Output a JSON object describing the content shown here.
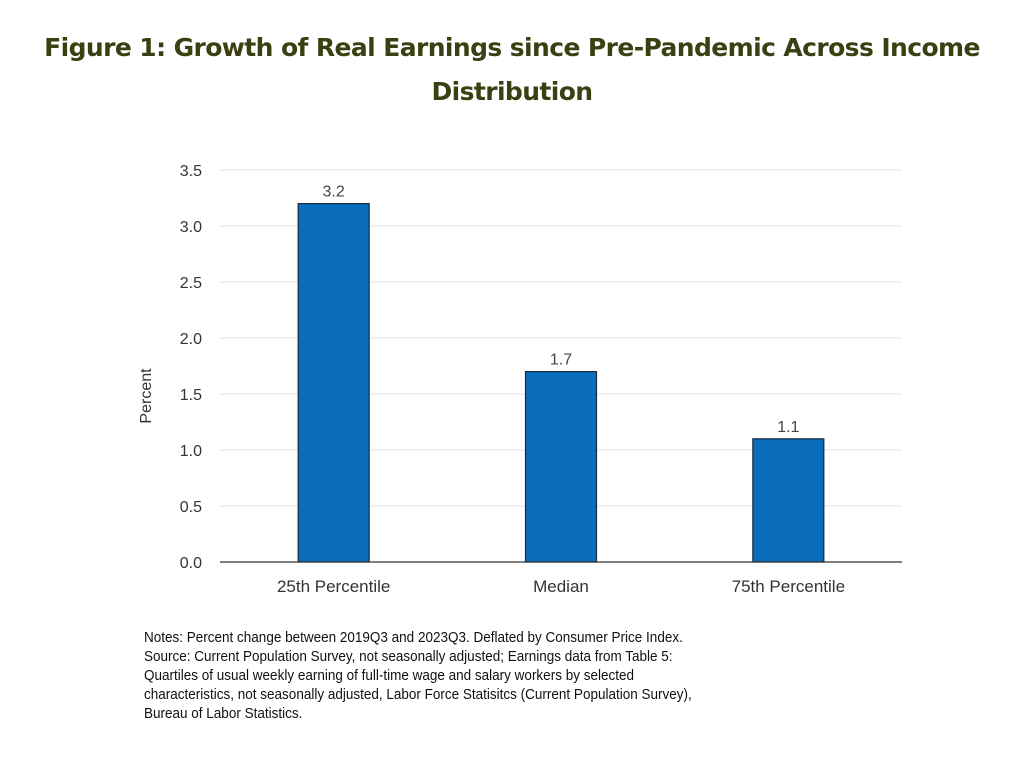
{
  "title": {
    "line1": "Figure 1: Growth of Real Earnings since Pre-Pandemic Across Income",
    "line2": "Distribution"
  },
  "colors": {
    "title": "#3b3f12",
    "bar_fill": "#0a6ebd",
    "bar_stroke": "#1a2a3a",
    "gridline": "#e0e0e0",
    "axis": "#333333"
  },
  "chart_data": {
    "type": "bar",
    "title": "Figure 1: Growth of Real Earnings since Pre-Pandemic Across Income Distribution",
    "categories": [
      "25th Percentile",
      "Median",
      "75th Percentile"
    ],
    "values": [
      3.2,
      1.7,
      1.1
    ],
    "data_labels": [
      "3.2",
      "1.7",
      "1.1"
    ],
    "xlabel": "",
    "ylabel": "Percent",
    "ylim": [
      0,
      3.5
    ],
    "yticks": [
      0.0,
      0.5,
      1.0,
      1.5,
      2.0,
      2.5,
      3.0,
      3.5
    ],
    "ytick_labels": [
      "0.0",
      "0.5",
      "1.0",
      "1.5",
      "2.0",
      "2.5",
      "3.0",
      "3.5"
    ],
    "grid": true,
    "legend": "none"
  },
  "notes": [
    "Notes: Percent change between 2019Q3 and 2023Q3. Deflated by Consumer Price Index.",
    "Source: Current Population Survey, not seasonally adjusted; Earnings data from Table 5:",
    "Quartiles of usual weekly earning of full-time wage and salary workers by selected",
    "characteristics, not seasonally adjusted, Labor Force Statisitcs (Current Population Survey),",
    "Bureau of Labor Statistics."
  ]
}
